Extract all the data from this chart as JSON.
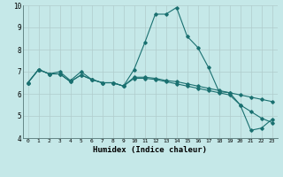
{
  "xlabel": "Humidex (Indice chaleur)",
  "background_color": "#c5e8e8",
  "grid_color": "#b0cccc",
  "line_color": "#1a7070",
  "xlim": [
    -0.5,
    23.5
  ],
  "ylim": [
    4,
    10
  ],
  "xticks": [
    0,
    1,
    2,
    3,
    4,
    5,
    6,
    7,
    8,
    9,
    10,
    11,
    12,
    13,
    14,
    15,
    16,
    17,
    18,
    19,
    20,
    21,
    22,
    23
  ],
  "yticks": [
    4,
    5,
    6,
    7,
    8,
    9,
    10
  ],
  "line1_x": [
    0,
    1,
    2,
    3,
    4,
    5,
    6,
    7,
    8,
    9,
    10,
    11,
    12,
    13,
    14,
    15,
    16,
    17,
    18,
    19,
    20,
    21,
    22,
    23
  ],
  "line1_y": [
    6.5,
    7.1,
    6.9,
    7.0,
    6.6,
    7.0,
    6.65,
    6.5,
    6.5,
    6.35,
    7.1,
    8.3,
    9.6,
    9.6,
    9.9,
    8.6,
    8.1,
    7.2,
    6.1,
    6.05,
    5.5,
    4.35,
    4.45,
    4.85
  ],
  "line2_x": [
    0,
    1,
    2,
    3,
    4,
    5,
    6,
    7,
    8,
    9,
    10,
    11,
    12,
    13,
    14,
    15,
    16,
    17,
    18,
    19,
    20,
    21,
    22,
    23
  ],
  "line2_y": [
    6.5,
    7.1,
    6.9,
    6.9,
    6.55,
    6.85,
    6.65,
    6.5,
    6.5,
    6.35,
    6.75,
    6.75,
    6.7,
    6.6,
    6.55,
    6.45,
    6.35,
    6.25,
    6.15,
    6.05,
    5.95,
    5.85,
    5.75,
    5.65
  ],
  "line3_x": [
    0,
    1,
    2,
    3,
    4,
    5,
    6,
    7,
    8,
    9,
    10,
    11,
    12,
    13,
    14,
    15,
    16,
    17,
    18,
    19,
    20,
    21,
    22,
    23
  ],
  "line3_y": [
    6.5,
    7.1,
    6.9,
    6.9,
    6.55,
    6.85,
    6.65,
    6.5,
    6.5,
    6.35,
    6.7,
    6.7,
    6.65,
    6.55,
    6.45,
    6.35,
    6.25,
    6.15,
    6.05,
    5.95,
    5.5,
    5.2,
    4.9,
    4.7
  ]
}
